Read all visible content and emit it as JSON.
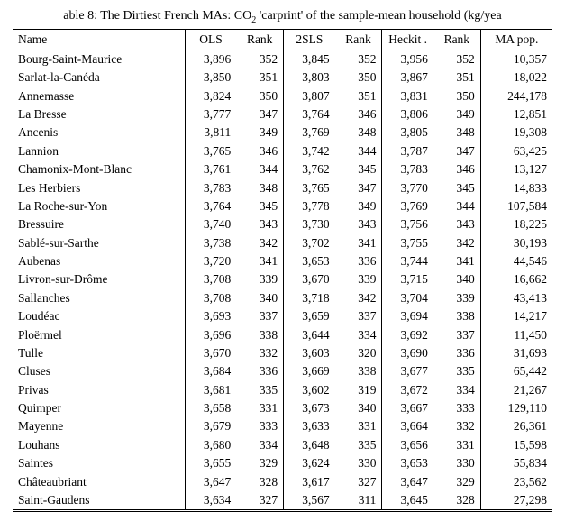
{
  "caption_html": "able 8: The Dirtiest French MAs: CO<sub>2</sub> 'carprint' of the sample-mean household (kg/yea",
  "columns": [
    "Name",
    "OLS",
    "Rank",
    "2SLS",
    "Rank",
    "Heckit .",
    "Rank",
    "MA pop."
  ],
  "column_align": [
    "left",
    "right",
    "right",
    "right",
    "right",
    "right",
    "right",
    "right"
  ],
  "vline_after_cols": [
    0,
    2,
    4,
    6
  ],
  "header_border_top": true,
  "header_border_bottom": true,
  "body_bottom_double": true,
  "font_family": "Palatino Linotype",
  "title_fontsize": 14,
  "cell_fontsize": 13.5,
  "colors": {
    "text": "#000000",
    "background": "#ffffff",
    "rule": "#000000"
  },
  "rows": [
    [
      "Bourg-Saint-Maurice",
      "3,896",
      "352",
      "3,845",
      "352",
      "3,956",
      "352",
      "10,357"
    ],
    [
      "Sarlat-la-Canéda",
      "3,850",
      "351",
      "3,803",
      "350",
      "3,867",
      "351",
      "18,022"
    ],
    [
      "Annemasse",
      "3,824",
      "350",
      "3,807",
      "351",
      "3,831",
      "350",
      "244,178"
    ],
    [
      "La Bresse",
      "3,777",
      "347",
      "3,764",
      "346",
      "3,806",
      "349",
      "12,851"
    ],
    [
      "Ancenis",
      "3,811",
      "349",
      "3,769",
      "348",
      "3,805",
      "348",
      "19,308"
    ],
    [
      "Lannion",
      "3,765",
      "346",
      "3,742",
      "344",
      "3,787",
      "347",
      "63,425"
    ],
    [
      "Chamonix-Mont-Blanc",
      "3,761",
      "344",
      "3,762",
      "345",
      "3,783",
      "346",
      "13,127"
    ],
    [
      "Les Herbiers",
      "3,783",
      "348",
      "3,765",
      "347",
      "3,770",
      "345",
      "14,833"
    ],
    [
      "La Roche-sur-Yon",
      "3,764",
      "345",
      "3,778",
      "349",
      "3,769",
      "344",
      "107,584"
    ],
    [
      "Bressuire",
      "3,740",
      "343",
      "3,730",
      "343",
      "3,756",
      "343",
      "18,225"
    ],
    [
      "Sablé-sur-Sarthe",
      "3,738",
      "342",
      "3,702",
      "341",
      "3,755",
      "342",
      "30,193"
    ],
    [
      "Aubenas",
      "3,720",
      "341",
      "3,653",
      "336",
      "3,744",
      "341",
      "44,546"
    ],
    [
      "Livron-sur-Drôme",
      "3,708",
      "339",
      "3,670",
      "339",
      "3,715",
      "340",
      "16,662"
    ],
    [
      "Sallanches",
      "3,708",
      "340",
      "3,718",
      "342",
      "3,704",
      "339",
      "43,413"
    ],
    [
      "Loudéac",
      "3,693",
      "337",
      "3,659",
      "337",
      "3,694",
      "338",
      "14,217"
    ],
    [
      "Ploërmel",
      "3,696",
      "338",
      "3,644",
      "334",
      "3,692",
      "337",
      "11,450"
    ],
    [
      "Tulle",
      "3,670",
      "332",
      "3,603",
      "320",
      "3,690",
      "336",
      "31,693"
    ],
    [
      "Cluses",
      "3,684",
      "336",
      "3,669",
      "338",
      "3,677",
      "335",
      "65,442"
    ],
    [
      "Privas",
      "3,681",
      "335",
      "3,602",
      "319",
      "3,672",
      "334",
      "21,267"
    ],
    [
      "Quimper",
      "3,658",
      "331",
      "3,673",
      "340",
      "3,667",
      "333",
      "129,110"
    ],
    [
      "Mayenne",
      "3,679",
      "333",
      "3,633",
      "331",
      "3,664",
      "332",
      "26,361"
    ],
    [
      "Louhans",
      "3,680",
      "334",
      "3,648",
      "335",
      "3,656",
      "331",
      "15,598"
    ],
    [
      "Saintes",
      "3,655",
      "329",
      "3,624",
      "330",
      "3,653",
      "330",
      "55,834"
    ],
    [
      "Châteaubriant",
      "3,647",
      "328",
      "3,617",
      "327",
      "3,647",
      "329",
      "23,562"
    ],
    [
      "Saint-Gaudens",
      "3,634",
      "327",
      "3,567",
      "311",
      "3,645",
      "328",
      "27,298"
    ]
  ]
}
